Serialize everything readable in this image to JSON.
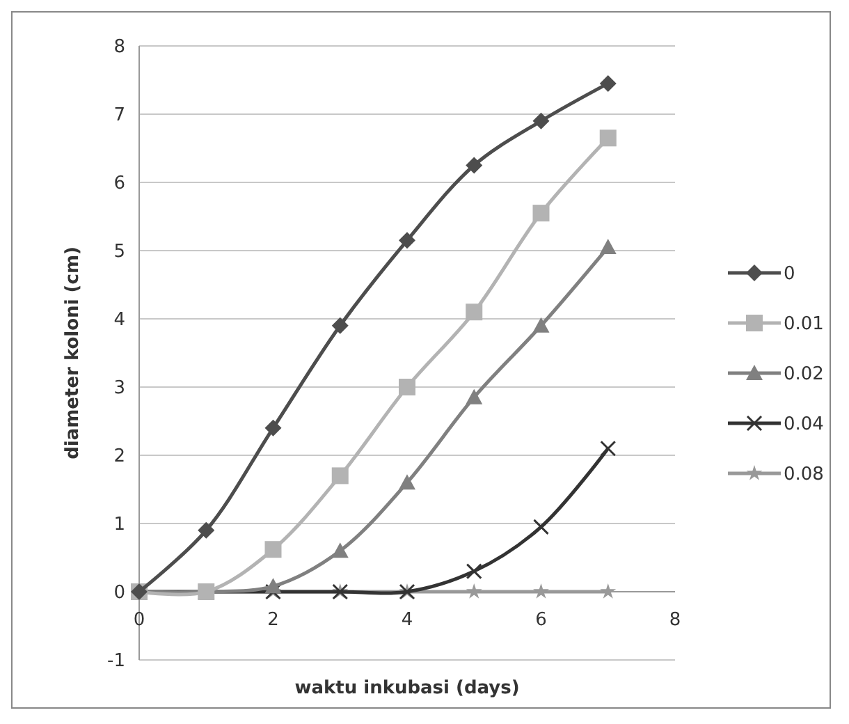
{
  "chart_data": {
    "type": "line",
    "xlabel": "waktu inkubasi (days)",
    "ylabel": "diameter koloni (cm)",
    "x": [
      0,
      1,
      2,
      3,
      4,
      5,
      6,
      7
    ],
    "xlim": [
      0,
      8
    ],
    "xticks": [
      0,
      2,
      4,
      6,
      8
    ],
    "ylim": [
      -1,
      8
    ],
    "yticks": [
      -1,
      0,
      1,
      2,
      3,
      4,
      5,
      6,
      7,
      8
    ],
    "grid": "y",
    "legend": "right",
    "series": [
      {
        "name": "0",
        "color": "#4d4d4d",
        "marker": "diamond",
        "values": [
          0,
          0.9,
          2.4,
          3.9,
          5.15,
          6.25,
          6.9,
          7.45
        ]
      },
      {
        "name": "0.01",
        "color": "#b3b3b3",
        "marker": "square",
        "values": [
          0,
          0,
          0.62,
          1.7,
          3.0,
          4.1,
          5.55,
          6.65
        ]
      },
      {
        "name": "0.02",
        "color": "#808080",
        "marker": "triangle",
        "values": [
          0,
          0,
          0.08,
          0.6,
          1.6,
          2.85,
          3.9,
          5.05
        ]
      },
      {
        "name": "0.04",
        "color": "#333333",
        "marker": "cross",
        "values": [
          0,
          0,
          0,
          0,
          0,
          0.3,
          0.95,
          2.1
        ]
      },
      {
        "name": "0.08",
        "color": "#999999",
        "marker": "star",
        "values": [
          0,
          0,
          0,
          0,
          0,
          0,
          0,
          0
        ]
      }
    ]
  }
}
